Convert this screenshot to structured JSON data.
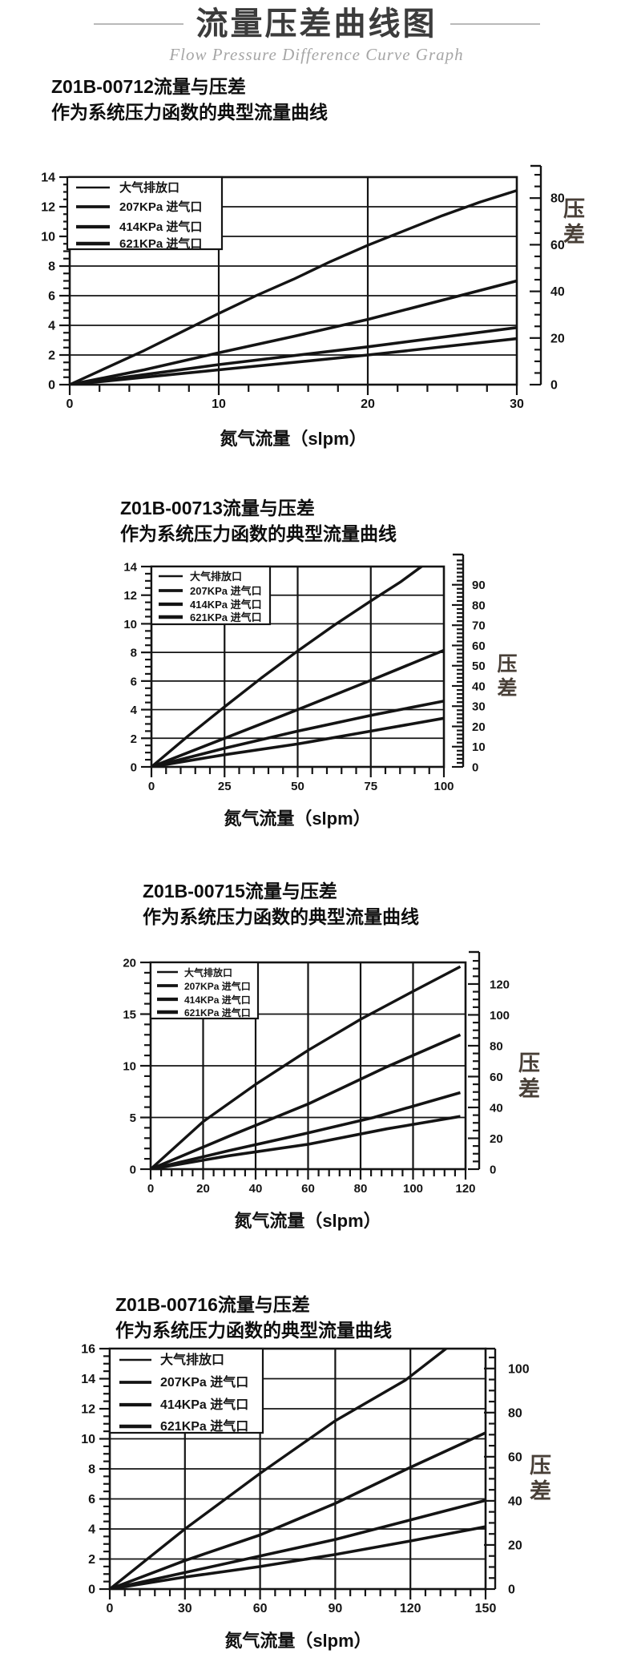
{
  "header": {
    "title": "流量压差曲线图",
    "subtitle": "Flow Pressure Difference Curve Graph"
  },
  "chart_data": [
    {
      "type": "line",
      "title": "Z01B-00712流量与压差",
      "subtitle": "作为系统压力函数的典型流量曲线",
      "xlabel": "氮气流量（slpm）",
      "ylabel_right": "压差",
      "xlim": [
        0,
        30
      ],
      "x_ticks": [
        0,
        10,
        20,
        30
      ],
      "x_minor_step": 2,
      "grid_x": [
        10,
        20
      ],
      "ylim_left": [
        0,
        14
      ],
      "y_ticks_left": [
        0,
        2,
        4,
        6,
        8,
        10,
        12,
        14
      ],
      "y_minor_step_left": 0.5,
      "grid_y": [
        2,
        4,
        6,
        8,
        10,
        12
      ],
      "ylim_right": [
        0,
        89
      ],
      "y_ticks_right": [
        0,
        20,
        40,
        60,
        80
      ],
      "y_minor_step_right": 5,
      "legend": [
        "大气排放口",
        "207KPa 进气口",
        "414KPa 进气口",
        "621KPa 进气口"
      ],
      "series": [
        {
          "name": "大气排放口",
          "points": [
            [
              0,
              0
            ],
            [
              2.5,
              1.15
            ],
            [
              5,
              2.3
            ],
            [
              7.5,
              3.55
            ],
            [
              10,
              4.8
            ],
            [
              12.5,
              6.0
            ],
            [
              15,
              7.1
            ],
            [
              17.5,
              8.3
            ],
            [
              20,
              9.4
            ],
            [
              22.5,
              10.4
            ],
            [
              25,
              11.4
            ],
            [
              27.5,
              12.3
            ],
            [
              30,
              13.1
            ]
          ]
        },
        {
          "name": "207KPa 进气口",
          "points": [
            [
              0,
              0
            ],
            [
              5,
              1.0
            ],
            [
              10,
              2.15
            ],
            [
              15,
              3.25
            ],
            [
              20,
              4.4
            ],
            [
              25,
              5.7
            ],
            [
              30,
              7.0
            ]
          ]
        },
        {
          "name": "414KPa 进气口",
          "points": [
            [
              0,
              0
            ],
            [
              10,
              1.35
            ],
            [
              20,
              2.55
            ],
            [
              30,
              3.85
            ]
          ]
        },
        {
          "name": "621KPa 进气口",
          "points": [
            [
              0,
              0
            ],
            [
              10,
              1.0
            ],
            [
              20,
              2.0
            ],
            [
              30,
              3.1
            ]
          ]
        }
      ]
    },
    {
      "type": "line",
      "title": "Z01B-00713流量与压差",
      "subtitle": "作为系统压力函数的典型流量曲线",
      "xlabel": "氮气流量（slpm）",
      "ylabel_right": "压差",
      "xlim": [
        0,
        100
      ],
      "x_ticks": [
        0,
        25,
        50,
        75,
        100
      ],
      "x_minor_step": 5,
      "grid_x": [
        25,
        50,
        75
      ],
      "ylim_left": [
        0,
        14
      ],
      "y_ticks_left": [
        0,
        2,
        4,
        6,
        8,
        10,
        12,
        14
      ],
      "y_minor_step_left": 0.5,
      "grid_y": [
        2,
        4,
        6,
        8,
        10,
        12
      ],
      "ylim_right": [
        0,
        99
      ],
      "y_ticks_right": [
        0,
        10,
        20,
        30,
        40,
        50,
        60,
        70,
        80,
        90
      ],
      "y_minor_step_right": 2,
      "legend": [
        "大气排放口",
        "207KPa 进气口",
        "414KPa 进气口",
        "621KPa 进气口"
      ],
      "series": [
        {
          "name": "大气排放口",
          "points": [
            [
              0,
              0
            ],
            [
              12.5,
              2.15
            ],
            [
              25,
              4.2
            ],
            [
              37.5,
              6.2
            ],
            [
              50,
              8.1
            ],
            [
              62.5,
              9.9
            ],
            [
              75,
              11.6
            ],
            [
              85,
              12.9
            ],
            [
              93,
              14.1
            ]
          ]
        },
        {
          "name": "207KPa 进气口",
          "points": [
            [
              0,
              0
            ],
            [
              25,
              2.0
            ],
            [
              50,
              4.0
            ],
            [
              75,
              6.05
            ],
            [
              100,
              8.15
            ]
          ]
        },
        {
          "name": "414KPa 进气口",
          "points": [
            [
              0,
              0
            ],
            [
              25,
              1.3
            ],
            [
              50,
              2.5
            ],
            [
              75,
              3.6
            ],
            [
              100,
              4.6
            ]
          ]
        },
        {
          "name": "621KPa 进气口",
          "points": [
            [
              0,
              0
            ],
            [
              25,
              0.85
            ],
            [
              50,
              1.6
            ],
            [
              75,
              2.5
            ],
            [
              100,
              3.4
            ]
          ]
        }
      ]
    },
    {
      "type": "line",
      "title": "Z01B-00715流量与压差",
      "subtitle": "作为系统压力函数的典型流量曲线",
      "xlabel": "氮气流量（slpm）",
      "ylabel_right": "压差",
      "xlim": [
        0,
        120
      ],
      "x_ticks": [
        0,
        20,
        40,
        60,
        80,
        100,
        120
      ],
      "x_minor_step": 4,
      "grid_x": [
        20,
        40,
        60,
        80,
        100
      ],
      "ylim_left": [
        0,
        20
      ],
      "y_ticks_left": [
        0,
        5,
        10,
        15,
        20
      ],
      "y_minor_step_left": 1,
      "grid_y": [
        5,
        10,
        15
      ],
      "ylim_right": [
        0,
        134
      ],
      "y_ticks_right": [
        0,
        20,
        40,
        60,
        80,
        100,
        120
      ],
      "y_minor_step_right": 5,
      "legend": [
        "大气排放口",
        "207KPa 进气口",
        "414KPa 进气口",
        "621KPa 进气口"
      ],
      "series": [
        {
          "name": "大气排放口",
          "points": [
            [
              0,
              0
            ],
            [
              20,
              4.6
            ],
            [
              40,
              8.2
            ],
            [
              60,
              11.5
            ],
            [
              80,
              14.5
            ],
            [
              100,
              17.2
            ],
            [
              118,
              19.6
            ]
          ]
        },
        {
          "name": "207KPa 进气口",
          "points": [
            [
              0,
              0
            ],
            [
              30,
              3.2
            ],
            [
              60,
              6.3
            ],
            [
              90,
              9.9
            ],
            [
              118,
              13.0
            ]
          ]
        },
        {
          "name": "414KPa 进气口",
          "points": [
            [
              0,
              0
            ],
            [
              30,
              1.8
            ],
            [
              60,
              3.5
            ],
            [
              85,
              5.0
            ],
            [
              118,
              7.4
            ]
          ]
        },
        {
          "name": "621KPa 进气口",
          "points": [
            [
              0,
              0
            ],
            [
              30,
              1.3
            ],
            [
              60,
              2.4
            ],
            [
              90,
              3.9
            ],
            [
              118,
              5.1
            ]
          ]
        }
      ]
    },
    {
      "type": "line",
      "title": "Z01B-00716流量与压差",
      "subtitle": "作为系统压力函数的典型流量曲线",
      "xlabel": "氮气流量（slpm）",
      "ylabel_right": "压差",
      "xlim": [
        0,
        150
      ],
      "x_ticks": [
        0,
        30,
        60,
        90,
        120,
        150
      ],
      "x_minor_step": 6,
      "grid_x": [
        30,
        60,
        90,
        120
      ],
      "ylim_left": [
        0,
        16
      ],
      "y_ticks_left": [
        0,
        2,
        4,
        6,
        8,
        10,
        12,
        14,
        16
      ],
      "y_minor_step_left": 0.5,
      "grid_y": [
        2,
        4,
        6,
        8,
        10,
        12,
        14
      ],
      "ylim_right": [
        0,
        109
      ],
      "y_ticks_right": [
        0,
        20,
        40,
        60,
        80,
        100
      ],
      "y_minor_step_right": 5,
      "legend": [
        "大气排放口",
        "207KPa 进气口",
        "414KPa 进气口",
        "621KPa 进气口"
      ],
      "series": [
        {
          "name": "大气排放口",
          "points": [
            [
              0,
              0
            ],
            [
              30,
              4.0
            ],
            [
              60,
              7.7
            ],
            [
              90,
              11.2
            ],
            [
              118,
              13.9
            ],
            [
              135,
              16.1
            ]
          ]
        },
        {
          "name": "207KPa 进气口",
          "points": [
            [
              0,
              0
            ],
            [
              30,
              1.9
            ],
            [
              60,
              3.6
            ],
            [
              90,
              5.7
            ],
            [
              120,
              8.1
            ],
            [
              150,
              10.4
            ]
          ]
        },
        {
          "name": "414KPa 进气口",
          "points": [
            [
              0,
              0
            ],
            [
              30,
              1.1
            ],
            [
              60,
              2.2
            ],
            [
              90,
              3.3
            ],
            [
              120,
              4.6
            ],
            [
              150,
              5.9
            ]
          ]
        },
        {
          "name": "621KPa 进气口",
          "points": [
            [
              0,
              0
            ],
            [
              30,
              0.8
            ],
            [
              60,
              1.5
            ],
            [
              90,
              2.3
            ],
            [
              120,
              3.2
            ],
            [
              150,
              4.15
            ]
          ]
        }
      ]
    }
  ]
}
